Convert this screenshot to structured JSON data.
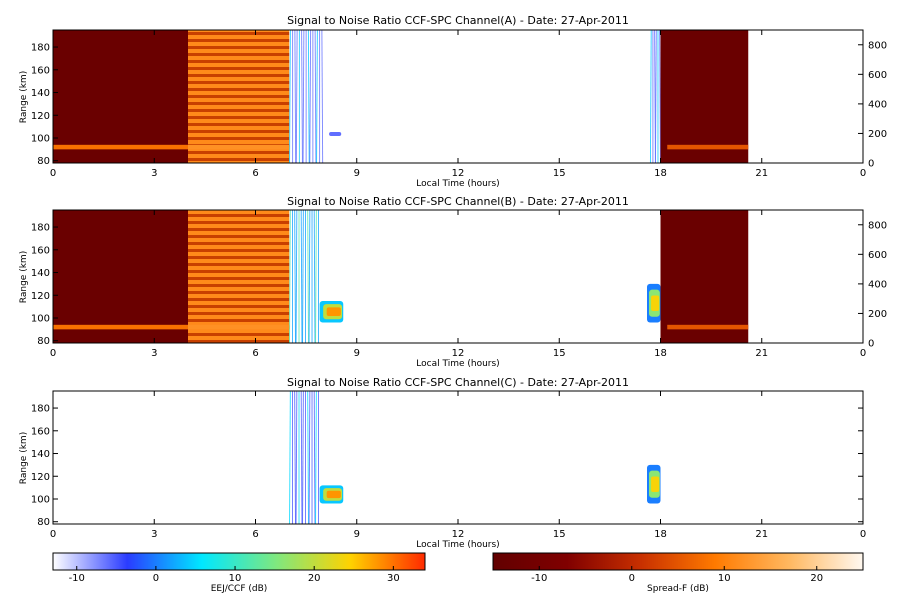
{
  "chart_data": [
    {
      "type": "heatmap",
      "title": "Signal to Noise Ratio CCF-SPC Channel(A) - Date: 27-Apr-2011",
      "xlabel": "Local Time (hours)",
      "ylabel": "Range (km)",
      "xlim": [
        0,
        24
      ],
      "ylim": [
        78,
        195
      ],
      "x_ticks": [
        "0",
        "3",
        "6",
        "9",
        "12",
        "15",
        "18",
        "21",
        "0"
      ],
      "y_ticks": [
        "80",
        "100",
        "120",
        "140",
        "160",
        "180"
      ],
      "right_ylim": [
        0,
        900
      ],
      "right_ticks": [
        "0",
        "200",
        "400",
        "600",
        "800"
      ],
      "blocks": [
        {
          "x": [
            0,
            4
          ],
          "y": [
            78,
            195
          ],
          "scale": "spreadf",
          "value": -13,
          "layer": "dark"
        },
        {
          "x": [
            4,
            7
          ],
          "y": [
            78,
            195
          ],
          "scale": "spreadf",
          "value": 3,
          "layer": "striped"
        },
        {
          "x": [
            7.0,
            8.0
          ],
          "y": [
            78,
            195
          ],
          "scale": "eej",
          "value": -6,
          "layer": "streaks"
        },
        {
          "x": [
            8.0,
            8.6
          ],
          "y": [
            99,
            108
          ],
          "scale": "eej",
          "value": -6,
          "layer": "blob"
        },
        {
          "x": [
            17.7,
            18.0
          ],
          "y": [
            78,
            195
          ],
          "scale": "eej",
          "value": -6,
          "layer": "streaks"
        },
        {
          "x": [
            18,
            20.6
          ],
          "y": [
            78,
            195
          ],
          "scale": "spreadf",
          "value": -13,
          "layer": "dark"
        }
      ],
      "layers": [
        {
          "x": [
            0,
            4
          ],
          "y": [
            90,
            94
          ],
          "scale": "spreadf",
          "value": 8
        },
        {
          "x": [
            4,
            7
          ],
          "y": [
            90,
            94
          ],
          "scale": "spreadf",
          "value": 12
        },
        {
          "x": [
            18.2,
            20.6
          ],
          "y": [
            90,
            94
          ],
          "scale": "spreadf",
          "value": 5
        }
      ]
    },
    {
      "type": "heatmap",
      "title": "Signal to Noise Ratio CCF-SPC Channel(B) - Date: 27-Apr-2011",
      "xlabel": "Local Time (hours)",
      "ylabel": "Range (km)",
      "xlim": [
        0,
        24
      ],
      "ylim": [
        78,
        195
      ],
      "x_ticks": [
        "0",
        "3",
        "6",
        "9",
        "12",
        "15",
        "18",
        "21",
        "0"
      ],
      "y_ticks": [
        "80",
        "100",
        "120",
        "140",
        "160",
        "180"
      ],
      "right_ylim": [
        0,
        900
      ],
      "right_ticks": [
        "0",
        "200",
        "400",
        "600",
        "800"
      ],
      "blocks": [
        {
          "x": [
            0,
            4
          ],
          "y": [
            78,
            195
          ],
          "scale": "spreadf",
          "value": -13,
          "layer": "dark"
        },
        {
          "x": [
            4,
            7
          ],
          "y": [
            78,
            195
          ],
          "scale": "spreadf",
          "value": 3,
          "layer": "striped"
        },
        {
          "x": [
            7.0,
            7.9
          ],
          "y": [
            78,
            195
          ],
          "scale": "eej",
          "value": 2,
          "layer": "streaks"
        },
        {
          "x": [
            7.9,
            8.6
          ],
          "y": [
            96,
            115
          ],
          "scale": "eej",
          "value": 28,
          "layer": "blob"
        },
        {
          "x": [
            17.6,
            18.0
          ],
          "y": [
            96,
            130
          ],
          "scale": "eej",
          "value": 24,
          "layer": "blob"
        },
        {
          "x": [
            18,
            20.6
          ],
          "y": [
            78,
            195
          ],
          "scale": "spreadf",
          "value": -13,
          "layer": "dark"
        }
      ],
      "layers": [
        {
          "x": [
            0,
            4
          ],
          "y": [
            90,
            94
          ],
          "scale": "spreadf",
          "value": 8
        },
        {
          "x": [
            4,
            7
          ],
          "y": [
            90,
            94
          ],
          "scale": "spreadf",
          "value": 12
        },
        {
          "x": [
            18.2,
            20.6
          ],
          "y": [
            90,
            94
          ],
          "scale": "spreadf",
          "value": 5
        }
      ]
    },
    {
      "type": "heatmap",
      "title": "Signal to Noise Ratio CCF-SPC Channel(C) - Date: 27-Apr-2011",
      "xlabel": "Local Time (hours)",
      "ylabel": "Range (km)",
      "xlim": [
        0,
        24
      ],
      "ylim": [
        78,
        195
      ],
      "x_ticks": [
        "0",
        "3",
        "6",
        "9",
        "12",
        "15",
        "18",
        "21",
        "0"
      ],
      "y_ticks": [
        "80",
        "100",
        "120",
        "140",
        "160",
        "180"
      ],
      "blocks": [
        {
          "x": [
            7.0,
            7.9
          ],
          "y": [
            78,
            195
          ],
          "scale": "eej",
          "value": -5,
          "layer": "streaks"
        },
        {
          "x": [
            7.9,
            8.6
          ],
          "y": [
            96,
            112
          ],
          "scale": "eej",
          "value": 28,
          "layer": "blob"
        },
        {
          "x": [
            17.6,
            18.0
          ],
          "y": [
            96,
            130
          ],
          "scale": "eej",
          "value": 24,
          "layer": "blob"
        }
      ],
      "layers": []
    }
  ],
  "colorbars": [
    {
      "name": "eej",
      "label": "EEJ/CCF (dB)",
      "range": [
        -13,
        34
      ],
      "ticks": [
        "-10",
        "0",
        "10",
        "20",
        "30"
      ],
      "tick_values": [
        -10,
        0,
        10,
        20,
        30
      ],
      "stops": [
        "#ffffff",
        "#2a3cff",
        "#00e8ff",
        "#7fe87f",
        "#ffd200",
        "#ff2a00"
      ]
    },
    {
      "name": "spreadf",
      "label": "Spread-F (dB)",
      "range": [
        -15,
        25
      ],
      "ticks": [
        "-10",
        "0",
        "10",
        "20"
      ],
      "tick_values": [
        -10,
        0,
        10,
        20
      ],
      "stops": [
        "#620000",
        "#800000",
        "#c83000",
        "#ff7a00",
        "#ffb860",
        "#fff8f0"
      ]
    }
  ]
}
